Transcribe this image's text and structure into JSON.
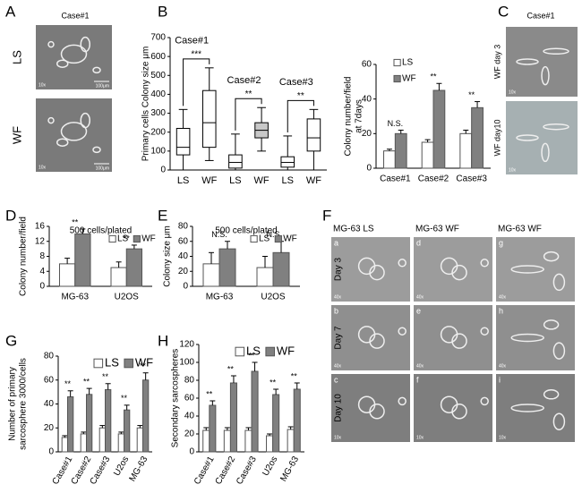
{
  "panel_labels": [
    "A",
    "B",
    "C",
    "D",
    "E",
    "F",
    "G",
    "H"
  ],
  "panel_A": {
    "title": "Case#1",
    "rows": [
      "LS",
      "WF"
    ],
    "magnification": [
      "10x",
      "10x"
    ],
    "scale_bar": [
      "100μm",
      "100μm"
    ]
  },
  "panel_C": {
    "title": "Case#1",
    "rows": [
      "WF day 3",
      "WF day10"
    ],
    "magnification": [
      "10x",
      "10x"
    ]
  },
  "panel_F": {
    "columns": [
      "MG-63   LS",
      "MG-63   WF",
      "MG-63   WF"
    ],
    "rows": [
      "Day 3",
      "Day 7",
      "Day 10"
    ],
    "cells": [
      "a",
      "d",
      "g",
      "b",
      "e",
      "h",
      "c",
      "f",
      "i"
    ],
    "magnification": [
      "40x",
      "40x",
      "40x",
      "40x",
      "40x",
      "40x",
      "10x",
      "10x",
      "10x"
    ]
  },
  "chart_data": [
    {
      "type": "box",
      "ylabel": [
        "Primary cells Colony size μm"
      ],
      "categories": [
        "LS",
        "WF",
        "LS",
        "WF",
        "LS",
        "WF"
      ],
      "boxes": [
        {
          "min": 0,
          "q1": 80,
          "median": 120,
          "q3": 220,
          "max": 320
        },
        {
          "min": 50,
          "q1": 120,
          "median": 250,
          "q3": 420,
          "max": 540
        },
        {
          "min": 0,
          "q1": 10,
          "median": 40,
          "q3": 80,
          "max": 190
        },
        {
          "min": 100,
          "q1": 170,
          "median": 210,
          "q3": 250,
          "max": 330
        },
        {
          "min": 0,
          "q1": 15,
          "median": 40,
          "q3": 70,
          "max": 180
        },
        {
          "min": 0,
          "q1": 100,
          "median": 170,
          "q3": 270,
          "max": 320
        }
      ],
      "box_colors": [
        "#ffffff",
        "#ffffff",
        "#ffffff",
        "#c8c8c8",
        "#ffffff",
        "#ffffff"
      ],
      "groups": [
        {
          "label": "Case#1",
          "significance": "***"
        },
        {
          "label": "Case#2",
          "significance": "**"
        },
        {
          "label": "Case#3",
          "significance": "**"
        }
      ],
      "ylim": [
        0,
        700
      ],
      "yticks": [
        0,
        100,
        200,
        300,
        400,
        500,
        600,
        700
      ]
    },
    {
      "type": "bar",
      "ylabel": [
        "Colony number/field",
        "at 7days"
      ],
      "categories": [
        "Case#1",
        "Case#2",
        "Case#3"
      ],
      "series": [
        {
          "name": "LS",
          "color": "#ffffff",
          "values": [
            10,
            15,
            20
          ],
          "errors": [
            1,
            1.5,
            2
          ]
        },
        {
          "name": "WF",
          "color": "#808080",
          "values": [
            20,
            45,
            35
          ],
          "errors": [
            2,
            4,
            3.5
          ]
        }
      ],
      "significance": [
        "N.S.",
        "**",
        "**"
      ],
      "ylim": [
        0,
        60
      ],
      "yticks": [
        0,
        20,
        40,
        60
      ]
    },
    {
      "type": "bar",
      "title": "500 cells/plated",
      "ylabel": [
        "Colony number/field"
      ],
      "categories": [
        "MG-63",
        "U2OS"
      ],
      "series": [
        {
          "name": "LS",
          "color": "#ffffff",
          "values": [
            6,
            5
          ],
          "errors": [
            1.5,
            1.5
          ]
        },
        {
          "name": "WF",
          "color": "#808080",
          "values": [
            14,
            10
          ],
          "errors": [
            1.3,
            1
          ]
        }
      ],
      "significance": [
        "**",
        "**"
      ],
      "ylim": [
        0,
        16
      ],
      "yticks": [
        0,
        4,
        8,
        12,
        16
      ]
    },
    {
      "type": "bar",
      "title": "500 cells/plated",
      "ylabel": [
        "Colony size μm"
      ],
      "categories": [
        "MG-63",
        "U2OS"
      ],
      "series": [
        {
          "name": "LS",
          "color": "#ffffff",
          "values": [
            30,
            25
          ],
          "errors": [
            15,
            15
          ]
        },
        {
          "name": "WF",
          "color": "#808080",
          "values": [
            50,
            45
          ],
          "errors": [
            10,
            15
          ]
        }
      ],
      "significance": [
        "N.S.",
        "N.S"
      ],
      "ylim": [
        0,
        80
      ],
      "yticks": [
        0,
        20,
        40,
        60,
        80
      ]
    },
    {
      "type": "bar",
      "ylabel": [
        "Number of primary",
        "sarcosphere 3000/cells"
      ],
      "categories": [
        "Case#1",
        "Case#2",
        "Case#3",
        "U2os",
        "MG-63"
      ],
      "series": [
        {
          "name": "LS",
          "color": "#ffffff",
          "values": [
            12,
            15,
            20,
            15,
            20
          ],
          "errors": [
            1.5,
            1.5,
            2,
            1.5,
            2
          ]
        },
        {
          "name": "WF",
          "color": "#808080",
          "values": [
            46,
            48,
            52,
            35,
            60
          ],
          "errors": [
            5,
            5,
            5,
            4,
            6
          ]
        }
      ],
      "significance": [
        "**",
        "**",
        "**",
        "**",
        "**"
      ],
      "ylim": [
        0,
        80
      ],
      "yticks": [
        0,
        20,
        40,
        60,
        80
      ]
    },
    {
      "type": "bar",
      "ylabel": [
        "Secondary sarcospheres"
      ],
      "categories": [
        "Case#1",
        "Case#2",
        "Case#3",
        "U2os",
        "MG-63"
      ],
      "series": [
        {
          "name": "LS",
          "color": "#ffffff",
          "values": [
            24,
            24,
            24,
            18,
            25
          ],
          "errors": [
            3,
            3,
            3,
            2,
            3
          ]
        },
        {
          "name": "WF",
          "color": "#808080",
          "values": [
            52,
            77,
            90,
            64,
            70
          ],
          "errors": [
            5,
            8,
            10,
            6,
            7
          ]
        }
      ],
      "significance": [
        "**",
        "**",
        "**",
        "**",
        "**"
      ],
      "ylim": [
        0,
        120
      ],
      "yticks": [
        0,
        20,
        40,
        60,
        80,
        100,
        120
      ]
    }
  ]
}
